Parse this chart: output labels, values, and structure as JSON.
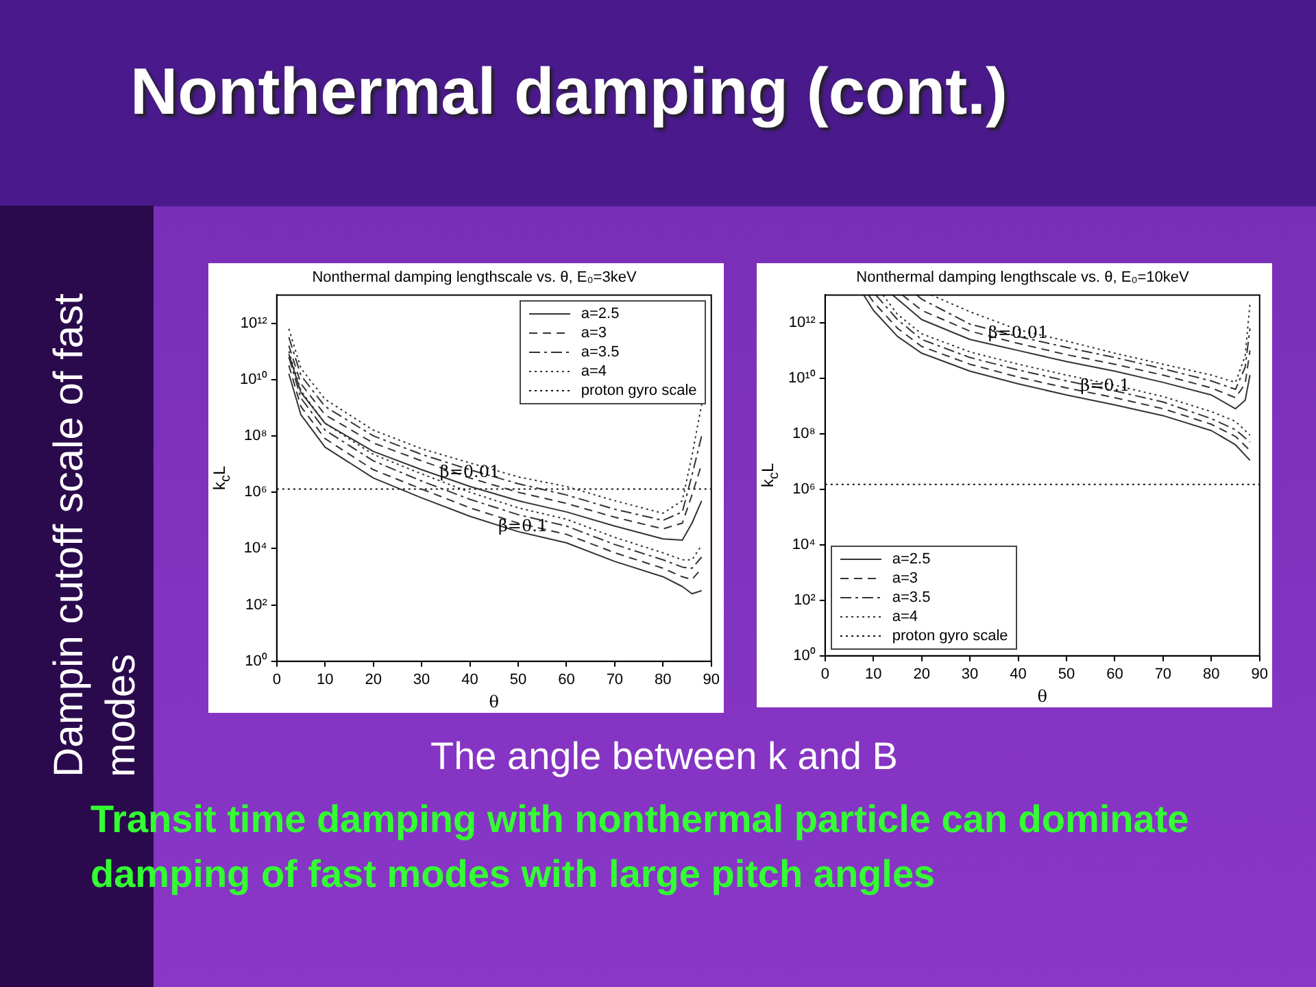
{
  "chart_data": [
    {
      "type": "line",
      "title": "Nonthermal damping lengthscale vs. θ, E₀=3keV",
      "xlabel": "θ",
      "ylabel": "k$_{c}$L",
      "xlim": [
        0,
        90
      ],
      "xticks": [
        0,
        10,
        20,
        30,
        40,
        50,
        60,
        70,
        80,
        90
      ],
      "ylim": [
        1,
        10000000000000.0
      ],
      "yticks": [
        {
          "value": 1,
          "label": "10⁰"
        },
        {
          "value": 100,
          "label": "10²"
        },
        {
          "value": 10000,
          "label": "10⁴"
        },
        {
          "value": 1000000,
          "label": "10⁶"
        },
        {
          "value": 100000000,
          "label": "10⁸"
        },
        {
          "value": 10000000000,
          "label": "10¹⁰"
        },
        {
          "value": 1000000000000,
          "label": "10¹²"
        }
      ],
      "log": "y",
      "grid": false,
      "legend": "top right",
      "marker": "none",
      "x": [
        2.5,
        5,
        10,
        20,
        30,
        40,
        50,
        60,
        70,
        80,
        84,
        86,
        88
      ],
      "series": [
        {
          "name": "a=2.5",
          "color": "#333333",
          "line_style": "solid",
          "values": [
            80000000000.0,
            3500000000.0,
            280000000.0,
            28000000.0,
            6300000.0,
            1600000.0,
            500000.0,
            200000.0,
            63000.0,
            22000.0,
            20000.0,
            80000.0,
            500000.0
          ]
        },
        {
          "name": "a=3",
          "color": "#333333",
          "line_style": "dashed",
          "values": [
            160000000000.0,
            7100000000.0,
            560000000.0,
            56000000.0,
            13000000.0,
            3200000.0,
            1000000.0,
            400000.0,
            130000.0,
            50000.0,
            80000.0,
            800000.0,
            10000000.0
          ]
        },
        {
          "name": "a=3.5",
          "color": "#333333",
          "line_style": "dashdot",
          "values": [
            320000000000.0,
            14000000000.0,
            1100000000.0,
            100000000.0,
            22000000.0,
            6300000.0,
            2000000.0,
            800000.0,
            250000.0,
            100000.0,
            200000.0,
            4000000.0,
            100000000.0
          ]
        },
        {
          "name": "a=4",
          "color": "#333333",
          "line_style": "dotted",
          "values": [
            630000000000.0,
            25000000000.0,
            2000000000.0,
            160000000.0,
            35000000.0,
            11000000.0,
            3500000.0,
            1600000.0,
            500000.0,
            180000.0,
            500000.0,
            20000000.0,
            1300000000.0
          ]
        },
        {
          "color": "#333333",
          "line_style": "solid",
          "values": [
            16000000000.0,
            560000000.0,
            40000000.0,
            3200000.0,
            630000.0,
            140000.0,
            40000.0,
            16000.0,
            3500.0,
            1000.0,
            450.0,
            250.0,
            320.0
          ]
        },
        {
          "color": "#333333",
          "line_style": "dashed",
          "values": [
            32000000000.0,
            1100000000.0,
            80000000.0,
            6300000.0,
            1300000.0,
            280000.0,
            80000.0,
            32000.0,
            7100.0,
            2000.0,
            1000.0,
            800.0,
            2000.0
          ]
        },
        {
          "color": "#333333",
          "line_style": "dashdot",
          "values": [
            63000000000.0,
            2200000000.0,
            160000000.0,
            13000000.0,
            2500000.0,
            560000.0,
            160000.0,
            63000.0,
            14000.0,
            4000.0,
            2200.0,
            2000.0,
            5000.0
          ]
        },
        {
          "color": "#333333",
          "line_style": "dotted",
          "values": [
            100000000000.0,
            4000000000.0,
            280000000.0,
            22000000.0,
            4500000.0,
            1000000.0,
            280000.0,
            110000.0,
            25000.0,
            7100.0,
            4000.0,
            4000.0,
            13000.0
          ]
        },
        {
          "name": "proton gyro scale",
          "color": "#111111",
          "line_style": "dotted",
          "x": [
            0,
            90
          ],
          "values": [
            1300000.0,
            1300000.0
          ]
        }
      ],
      "annotations": [
        {
          "text": "β=0.01",
          "x": 40,
          "y": 5000000.0
        },
        {
          "text": "β=0.1",
          "x": 51,
          "y": 60000.0
        }
      ]
    },
    {
      "type": "line",
      "title": "Nonthermal damping lengthscale vs. θ, E₀=10keV",
      "xlabel": "θ",
      "ylabel": "k$_{c}$L",
      "xlim": [
        0,
        90
      ],
      "xticks": [
        0,
        10,
        20,
        30,
        40,
        50,
        60,
        70,
        80,
        90
      ],
      "ylim": [
        1,
        10000000000000.0
      ],
      "yticks": [
        {
          "value": 1,
          "label": "10⁰"
        },
        {
          "value": 100,
          "label": "10²"
        },
        {
          "value": 10000,
          "label": "10⁴"
        },
        {
          "value": 1000000,
          "label": "10⁶"
        },
        {
          "value": 100000000,
          "label": "10⁸"
        },
        {
          "value": 10000000000,
          "label": "10¹⁰"
        },
        {
          "value": 1000000000000,
          "label": "10¹²"
        }
      ],
      "log": "y",
      "grid": false,
      "legend": "bottom left",
      "marker": "none",
      "series": [
        {
          "name": "a=2.5",
          "color": "#333333",
          "line_style": "solid",
          "x": [
            14,
            20,
            30,
            40,
            50,
            60,
            70,
            80,
            85,
            87,
            88
          ],
          "values": [
            10000000000000.0,
            1300000000000.0,
            250000000000.0,
            100000000000.0,
            40000000000.0,
            18000000000.0,
            7100000000.0,
            2500000000.0,
            800000000.0,
            1600000000.0,
            13000000000.0
          ]
        },
        {
          "name": "a=3",
          "color": "#333333",
          "line_style": "dashed",
          "x": [
            16,
            20,
            30,
            40,
            50,
            60,
            70,
            80,
            85,
            87,
            88
          ],
          "values": [
            10000000000000.0,
            2800000000000.0,
            500000000000.0,
            180000000000.0,
            71000000000.0,
            32000000000.0,
            13000000000.0,
            4500000000.0,
            2000000000.0,
            6300000000.0,
            100000000000.0
          ]
        },
        {
          "name": "a=3.5",
          "color": "#333333",
          "line_style": "dashdot",
          "x": [
            19,
            20,
            30,
            40,
            50,
            60,
            70,
            80,
            85,
            87,
            88
          ],
          "values": [
            10000000000000.0,
            7100000000000.0,
            890000000000.0,
            320000000000.0,
            130000000000.0,
            56000000000.0,
            22000000000.0,
            8000000000.0,
            4000000000.0,
            25000000000.0,
            630000000000.0
          ]
        },
        {
          "name": "a=4",
          "color": "#333333",
          "line_style": "dotted",
          "x": [
            22,
            30,
            40,
            50,
            60,
            70,
            80,
            85,
            87,
            88
          ],
          "values": [
            10000000000000.0,
            2500000000000.0,
            560000000000.0,
            220000000000.0,
            80000000000.0,
            32000000000.0,
            13000000000.0,
            7100000000.0,
            63000000000.0,
            5000000000000.0
          ]
        },
        {
          "color": "#333333",
          "line_style": "solid",
          "x": [
            8,
            10,
            15,
            20,
            30,
            40,
            50,
            60,
            70,
            80,
            85,
            88
          ],
          "values": [
            10000000000000.0,
            2800000000000.0,
            320000000000.0,
            80000000000.0,
            18000000000.0,
            6300000000.0,
            2500000000.0,
            1100000000.0,
            450000000.0,
            130000000.0,
            40000000.0,
            11000000.0
          ]
        },
        {
          "color": "#333333",
          "line_style": "dashed",
          "x": [
            9,
            10,
            15,
            20,
            30,
            40,
            50,
            60,
            70,
            80,
            85,
            88
          ],
          "values": [
            10000000000000.0,
            5600000000000.0,
            630000000000.0,
            140000000000.0,
            32000000000.0,
            11000000000.0,
            4500000000.0,
            2000000000.0,
            800000000.0,
            220000000.0,
            80000000.0,
            25000000.0
          ]
        },
        {
          "color": "#333333",
          "line_style": "dashdot",
          "x": [
            10.5,
            15,
            20,
            30,
            40,
            50,
            60,
            70,
            80,
            85,
            88
          ],
          "values": [
            10000000000000.0,
            1300000000000.0,
            250000000000.0,
            56000000000.0,
            20000000000.0,
            8000000000.0,
            3500000000.0,
            1400000000.0,
            350000000.0,
            140000000.0,
            50000000.0
          ]
        },
        {
          "color": "#333333",
          "line_style": "dotted",
          "x": [
            12,
            15,
            20,
            30,
            40,
            50,
            60,
            70,
            80,
            85,
            88
          ],
          "values": [
            10000000000000.0,
            2000000000000.0,
            400000000000.0,
            89000000000.0,
            32000000000.0,
            13000000000.0,
            5600000000.0,
            2200000000.0,
            630000000.0,
            280000000.0,
            89000000.0
          ]
        },
        {
          "name": "proton gyro scale",
          "color": "#111111",
          "line_style": "dotted",
          "x": [
            0,
            90
          ],
          "values": [
            1500000.0,
            1500000.0
          ]
        }
      ],
      "annotations": [
        {
          "text": "β=0.01",
          "x": 40,
          "y": 400000000000.0
        },
        {
          "text": "β=0.1",
          "x": 58,
          "y": 5000000000.0
        }
      ]
    },
    {
      "type": "other",
      "title": "Nonthermal damping (cont.)",
      "ylabel": "Dampin cutoff scale of fast modes",
      "xlabel": "The angle between k and B",
      "annotations": [
        "Transit time damping with nonthermal particle can dominate damping of fast modes with large pitch angles"
      ]
    }
  ]
}
